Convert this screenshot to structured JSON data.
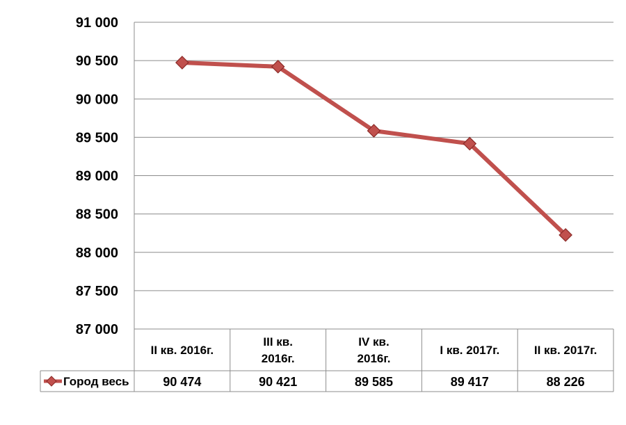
{
  "chart_data": {
    "type": "line",
    "title": "",
    "xlabel": "",
    "ylabel": "",
    "categories": [
      [
        "II кв. 2016г."
      ],
      [
        "III кв.",
        "2016г."
      ],
      [
        "IV кв.",
        "2016г."
      ],
      [
        "I кв. 2017г."
      ],
      [
        "II кв. 2017г."
      ]
    ],
    "series": [
      {
        "name": "Город весь",
        "values": [
          90474,
          90421,
          89585,
          89417,
          88226
        ],
        "value_labels": [
          "90 474",
          "90 421",
          "89 585",
          "89 417",
          "88 226"
        ],
        "color": "#c0504d",
        "marker": "diamond"
      }
    ],
    "ylim": [
      87000,
      91000
    ],
    "y_ticks": [
      91000,
      90500,
      90000,
      89500,
      89000,
      88500,
      88000,
      87500,
      87000
    ],
    "y_tick_labels": [
      "91 000",
      "90 500",
      "90 000",
      "89 500",
      "89 000",
      "88 500",
      "88 000",
      "87 500",
      "87 000"
    ],
    "grid": true,
    "legend": "data-table-left"
  }
}
